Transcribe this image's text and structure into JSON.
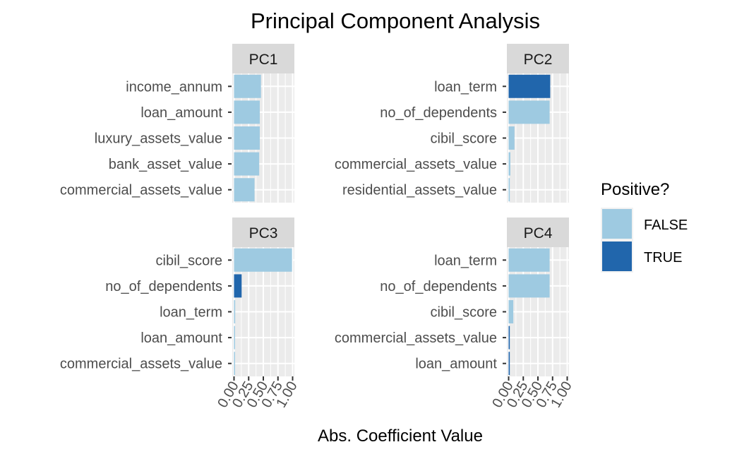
{
  "chart_data": {
    "type": "bar",
    "title": "Principal Component Analysis",
    "xlabel": "Abs. Coefficient Value",
    "ylabel": "",
    "xlim": [
      0,
      1
    ],
    "x_ticks": [
      "0.00",
      "0.25",
      "0.50",
      "0.75",
      "1.00"
    ],
    "grid": true,
    "orientation": "horizontal",
    "legend": {
      "title": "Positive?",
      "position": "right",
      "entries": [
        {
          "label": "FALSE",
          "color": "#9ecae1"
        },
        {
          "label": "TRUE",
          "color": "#2166ac"
        }
      ]
    },
    "panels": [
      {
        "label": "PC1",
        "categories": [
          "income_annum",
          "loan_amount",
          "luxury_assets_value",
          "bank_asset_value",
          "commercial_assets_value"
        ],
        "values": [
          0.46,
          0.44,
          0.44,
          0.43,
          0.35
        ],
        "positive": [
          false,
          false,
          false,
          false,
          false
        ]
      },
      {
        "label": "PC2",
        "categories": [
          "loan_term",
          "no_of_dependents",
          "cibil_score",
          "commercial_assets_value",
          "residential_assets_value"
        ],
        "values": [
          0.71,
          0.7,
          0.1,
          0.03,
          0.02
        ],
        "positive": [
          true,
          false,
          false,
          false,
          false
        ]
      },
      {
        "label": "PC3",
        "categories": [
          "cibil_score",
          "no_of_dependents",
          "loan_term",
          "loan_amount",
          "commercial_assets_value"
        ],
        "values": [
          0.99,
          0.13,
          0.02,
          0.01,
          0.01
        ],
        "positive": [
          false,
          true,
          false,
          false,
          false
        ]
      },
      {
        "label": "PC4",
        "categories": [
          "loan_term",
          "no_of_dependents",
          "cibil_score",
          "commercial_assets_value",
          "loan_amount"
        ],
        "values": [
          0.7,
          0.7,
          0.08,
          0.02,
          0.02
        ],
        "positive": [
          false,
          false,
          false,
          true,
          true
        ]
      }
    ]
  }
}
